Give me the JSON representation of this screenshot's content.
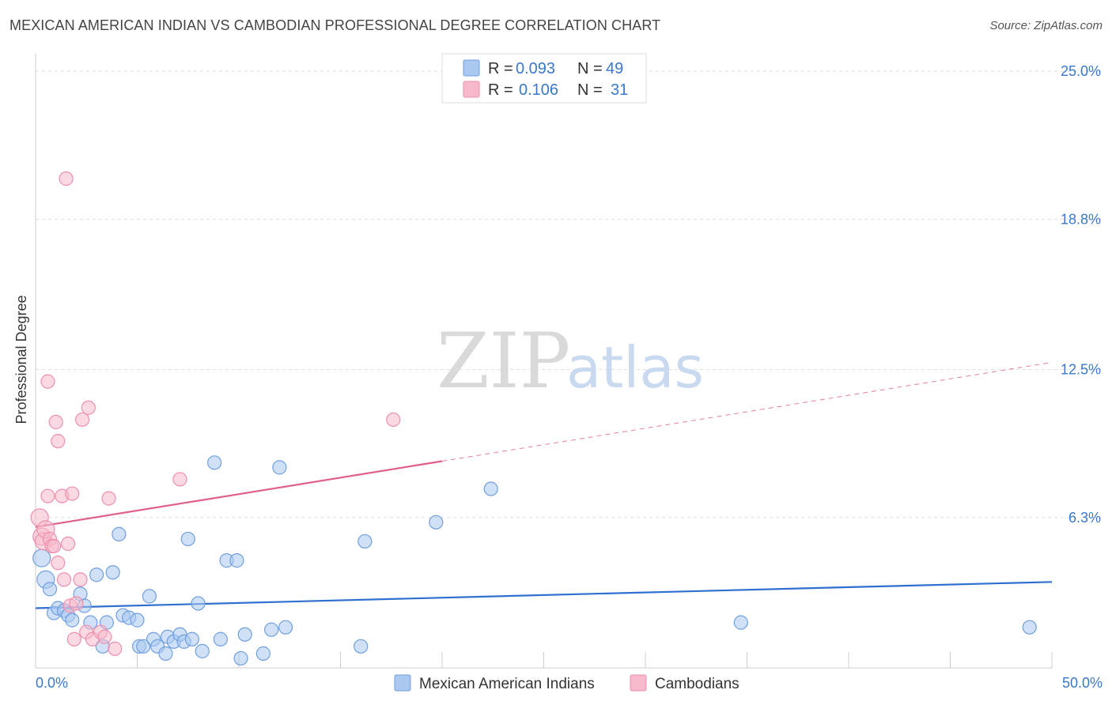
{
  "title": "MEXICAN AMERICAN INDIAN VS CAMBODIAN PROFESSIONAL DEGREE CORRELATION CHART",
  "source": "Source: ZipAtlas.com",
  "watermark": {
    "zip": "ZIP",
    "atlas": "atlas"
  },
  "colors": {
    "blue_fill": "#aac8f0",
    "blue_stroke": "#6f9fe0",
    "blue_line": "#2f6fcf",
    "pink_fill": "#f6b9cc",
    "pink_stroke": "#ee8fae",
    "pink_line": "#e0608a",
    "tick_text": "#3a78c9",
    "grid": "#dddddd"
  },
  "legend": {
    "rows": [
      {
        "r_label": "R =",
        "r_value": "0.093",
        "n_label": "N =",
        "n_value": "49"
      },
      {
        "r_label": "R =",
        "r_value": "0.106",
        "n_label": "N =",
        "n_value": "31"
      }
    ]
  },
  "chart_data": {
    "type": "scatter",
    "title": "MEXICAN AMERICAN INDIAN VS CAMBODIAN PROFESSIONAL DEGREE CORRELATION CHART",
    "xlabel": "",
    "ylabel": "Professional Degree",
    "xlim": [
      0,
      50
    ],
    "ylim": [
      0,
      25.5
    ],
    "x_tick_labels": [
      "0.0%",
      "50.0%"
    ],
    "y_ticks": [
      6.3,
      12.5,
      18.8,
      25.0
    ],
    "y_tick_labels": [
      "6.3%",
      "12.5%",
      "18.8%",
      "25.0%"
    ],
    "legend_position": "top-center",
    "series": [
      {
        "name": "Mexican American Indians",
        "color": "blue",
        "trend": {
          "x0": 0,
          "y0": 2.5,
          "x1": 50,
          "y1": 3.6,
          "dashed_from": null
        },
        "points": [
          [
            0.3,
            4.6
          ],
          [
            0.5,
            3.7
          ],
          [
            0.7,
            3.3
          ],
          [
            0.9,
            2.3
          ],
          [
            1.1,
            2.5
          ],
          [
            1.4,
            2.4
          ],
          [
            1.6,
            2.2
          ],
          [
            1.8,
            2.0
          ],
          [
            2.2,
            3.1
          ],
          [
            2.4,
            2.6
          ],
          [
            2.7,
            1.9
          ],
          [
            3.0,
            3.9
          ],
          [
            3.3,
            0.9
          ],
          [
            3.5,
            1.9
          ],
          [
            3.8,
            4.0
          ],
          [
            4.1,
            5.6
          ],
          [
            4.3,
            2.2
          ],
          [
            4.6,
            2.1
          ],
          [
            5.0,
            2.0
          ],
          [
            5.1,
            0.9
          ],
          [
            5.3,
            0.9
          ],
          [
            5.6,
            3.0
          ],
          [
            5.8,
            1.2
          ],
          [
            6.0,
            0.9
          ],
          [
            6.4,
            0.6
          ],
          [
            6.5,
            1.3
          ],
          [
            6.8,
            1.1
          ],
          [
            7.1,
            1.4
          ],
          [
            7.3,
            1.1
          ],
          [
            7.5,
            5.4
          ],
          [
            7.7,
            1.2
          ],
          [
            8.0,
            2.7
          ],
          [
            8.2,
            0.7
          ],
          [
            8.8,
            8.6
          ],
          [
            9.1,
            1.2
          ],
          [
            9.4,
            4.5
          ],
          [
            9.9,
            4.5
          ],
          [
            10.1,
            0.4
          ],
          [
            10.3,
            1.4
          ],
          [
            11.2,
            0.6
          ],
          [
            11.6,
            1.6
          ],
          [
            12.0,
            8.4
          ],
          [
            12.3,
            1.7
          ],
          [
            16.0,
            0.9
          ],
          [
            16.2,
            5.3
          ],
          [
            19.7,
            6.1
          ],
          [
            22.4,
            7.5
          ],
          [
            34.7,
            1.9
          ],
          [
            48.9,
            1.7
          ]
        ]
      },
      {
        "name": "Cambodians",
        "color": "pink",
        "trend": {
          "x0": 0,
          "y0": 5.9,
          "x1": 50,
          "y1": 12.8,
          "dashed_from": 20
        },
        "points": [
          [
            0.2,
            6.3
          ],
          [
            0.3,
            5.5
          ],
          [
            0.4,
            5.3
          ],
          [
            0.5,
            5.8
          ],
          [
            0.6,
            7.2
          ],
          [
            0.7,
            5.4
          ],
          [
            0.8,
            5.1
          ],
          [
            0.9,
            5.1
          ],
          [
            1.0,
            10.3
          ],
          [
            1.1,
            9.5
          ],
          [
            1.1,
            4.4
          ],
          [
            1.3,
            7.2
          ],
          [
            1.4,
            3.7
          ],
          [
            1.5,
            20.5
          ],
          [
            1.6,
            5.2
          ],
          [
            1.7,
            2.6
          ],
          [
            1.8,
            7.3
          ],
          [
            1.9,
            1.2
          ],
          [
            2.0,
            2.7
          ],
          [
            2.2,
            3.7
          ],
          [
            2.3,
            10.4
          ],
          [
            2.5,
            1.5
          ],
          [
            2.6,
            10.9
          ],
          [
            2.8,
            1.2
          ],
          [
            3.2,
            1.5
          ],
          [
            3.4,
            1.3
          ],
          [
            3.6,
            7.1
          ],
          [
            3.9,
            0.8
          ],
          [
            7.1,
            7.9
          ],
          [
            17.6,
            10.4
          ],
          [
            0.6,
            12.0
          ]
        ]
      }
    ]
  },
  "bottom_legend": {
    "items": [
      {
        "label": "Mexican American Indians"
      },
      {
        "label": "Cambodians"
      }
    ]
  }
}
